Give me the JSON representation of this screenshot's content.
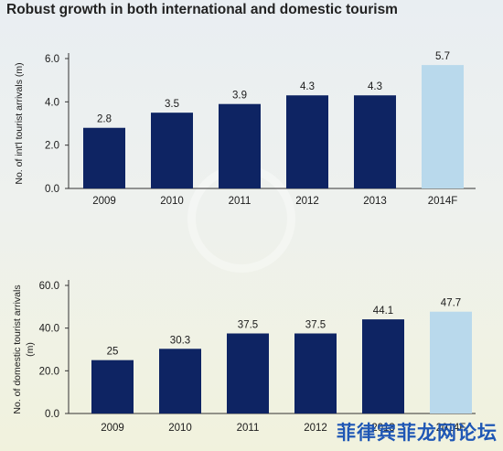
{
  "title": "Robust growth in both international and domestic tourism",
  "watermark": "菲律宾菲龙网论坛",
  "colors": {
    "actual": "#0e2463",
    "forecast": "#b9d9ec",
    "axis": "#333333",
    "text": "#1a1a1a"
  },
  "chart_data": [
    {
      "type": "bar",
      "title": "",
      "xlabel": "",
      "ylabel": "No. of int'l tourist arrivals (m)",
      "categories": [
        "2009",
        "2010",
        "2011",
        "2012",
        "2013",
        "2014F"
      ],
      "values": [
        2.8,
        3.5,
        3.9,
        4.3,
        4.3,
        5.7
      ],
      "value_labels": [
        "2.8",
        "3.5",
        "3.9",
        "4.3",
        "4.3",
        "5.7"
      ],
      "forecast": [
        false,
        false,
        false,
        false,
        false,
        true
      ],
      "ylim": [
        0,
        6.0
      ],
      "yticks": [
        "0.0",
        "2.0",
        "4.0",
        "6.0"
      ],
      "grid": false,
      "legend": "none"
    },
    {
      "type": "bar",
      "title": "",
      "xlabel": "",
      "ylabel": "No. of domestic tourist arrivals (m)",
      "categories": [
        "2009",
        "2010",
        "2011",
        "2012",
        "2013",
        "2014F"
      ],
      "values": [
        25,
        30.3,
        37.5,
        37.5,
        44.1,
        47.7
      ],
      "value_labels": [
        "25",
        "30.3",
        "37.5",
        "37.5",
        "44.1",
        "47.7"
      ],
      "forecast": [
        false,
        false,
        false,
        false,
        false,
        true
      ],
      "ylim": [
        0,
        60.0
      ],
      "yticks": [
        "0.0",
        "20.0",
        "40.0",
        "60.0"
      ],
      "grid": false,
      "legend": "none"
    }
  ]
}
